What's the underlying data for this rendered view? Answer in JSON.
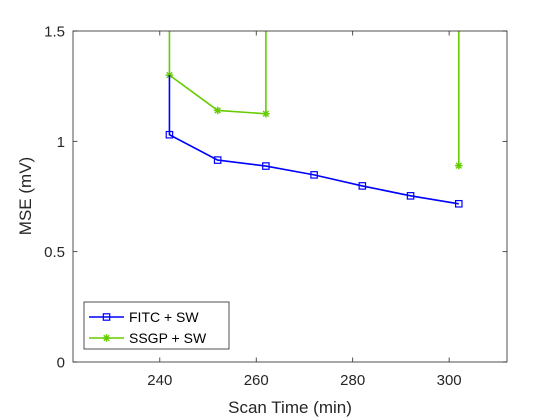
{
  "chart_data": {
    "type": "line",
    "title": "",
    "xlabel": "Scan Time (min)",
    "ylabel": "MSE (mV)",
    "xlim": [
      222,
      312
    ],
    "ylim": [
      0,
      1.5
    ],
    "xticks": [
      240,
      260,
      280,
      300
    ],
    "yticks": [
      0,
      0.5,
      1,
      1.5
    ],
    "xtick_labels": [
      "240",
      "260",
      "280",
      "300"
    ],
    "ytick_labels": [
      "0",
      "0.5",
      "1",
      "1.5"
    ],
    "grid": false,
    "legend_location": "bottom-left",
    "series": [
      {
        "name": "FITC + SW",
        "color": "#0000ff",
        "marker": "square",
        "x": [
          242,
          242,
          252,
          262,
          272,
          282,
          292,
          302
        ],
        "y": [
          1.3,
          1.03,
          0.915,
          0.888,
          0.848,
          0.798,
          0.753,
          0.717
        ]
      },
      {
        "name": "SSGP + SW",
        "color": "#66cc00",
        "marker": "star",
        "segments": [
          {
            "x": [
              242,
              242,
              252,
              262,
              262
            ],
            "y": [
              1.5,
              1.3,
              1.14,
              1.125,
              1.5
            ]
          },
          {
            "x": [
              302,
              302
            ],
            "y": [
              1.5,
              0.89
            ]
          }
        ],
        "x": [
          242,
          252,
          262,
          302
        ],
        "y": [
          1.3,
          1.14,
          1.125,
          0.89
        ]
      }
    ]
  }
}
